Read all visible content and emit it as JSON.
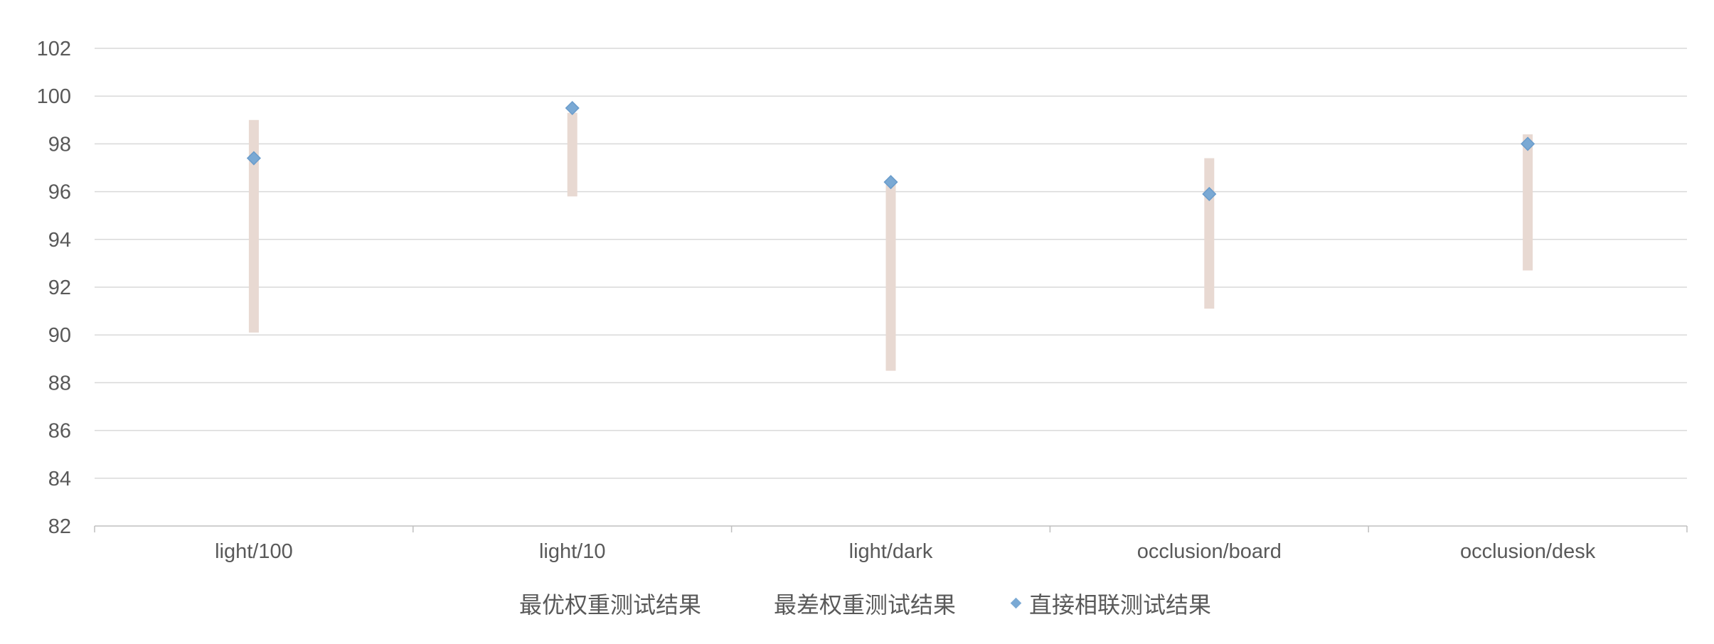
{
  "chart_data": {
    "type": "scatter",
    "title": "",
    "xlabel": "",
    "ylabel": "",
    "categories": [
      "light/100",
      "light/10",
      "light/dark",
      "occlusion/board",
      "occlusion/desk"
    ],
    "ylim": [
      82,
      102
    ],
    "yticks": [
      82,
      84,
      86,
      88,
      90,
      92,
      94,
      96,
      98,
      100,
      102
    ],
    "grid": true,
    "legend_position": "bottom",
    "series": [
      {
        "name": "最优权重测试结果",
        "values": [
          99.0,
          99.3,
          96.3,
          97.4,
          98.4
        ]
      },
      {
        "name": "最差权重测试结果",
        "values": [
          90.1,
          95.8,
          88.5,
          91.1,
          92.7
        ]
      },
      {
        "name": "直接相联测试结果",
        "values": [
          97.4,
          99.5,
          96.4,
          95.9,
          98.0
        ]
      }
    ],
    "colors": {
      "range_bar": "#e8d9d2",
      "marker": "#7aa9d4",
      "marker_stroke": "#6a9ccb",
      "grid": "#d9d9d9",
      "axis": "#bfbfbf",
      "text": "#595959"
    }
  }
}
